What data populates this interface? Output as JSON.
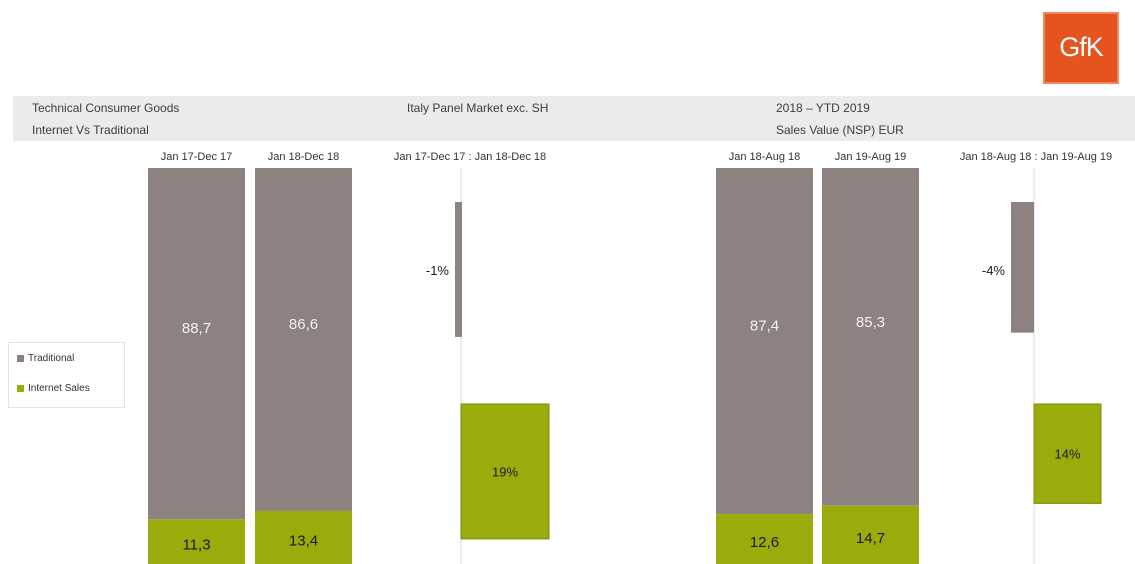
{
  "logo": {
    "text": "GfK"
  },
  "header": {
    "category": "Technical Consumer Goods",
    "subtitle": "Internet Vs Traditional",
    "market": "Italy Panel Market exc. SH",
    "period": "2018 – YTD 2019",
    "measure": "Sales Value (NSP) EUR"
  },
  "legend": {
    "items": [
      {
        "label": "Traditional",
        "color": "#8d8280"
      },
      {
        "label": "Internet Sales",
        "color": "#9aab0c"
      }
    ]
  },
  "colors": {
    "traditional": "#8d8280",
    "internet": "#9aab0c",
    "divider": "#d9d9d9"
  },
  "chart_data": [
    {
      "type": "bar",
      "stacked": true,
      "unit": "%",
      "categories": [
        "Jan 17-Dec 17",
        "Jan 18-Dec 18"
      ],
      "series": [
        {
          "name": "Internet Sales",
          "values": [
            11.3,
            13.4
          ],
          "labels": [
            "11,3",
            "13,4"
          ]
        },
        {
          "name": "Traditional",
          "values": [
            88.7,
            86.6
          ],
          "labels": [
            "88,7",
            "86,6"
          ]
        }
      ]
    },
    {
      "type": "bar",
      "title": "Jan 17-Dec 17 : Jan 18-Dec 18",
      "categories": [
        "Traditional",
        "Internet Sales"
      ],
      "values": [
        -1,
        19
      ],
      "labels": [
        "-1%",
        "19%"
      ]
    },
    {
      "type": "bar",
      "stacked": true,
      "unit": "%",
      "categories": [
        "Jan 18-Aug 18",
        "Jan 19-Aug 19"
      ],
      "series": [
        {
          "name": "Internet Sales",
          "values": [
            12.6,
            14.7
          ],
          "labels": [
            "12,6",
            "14,7"
          ]
        },
        {
          "name": "Traditional",
          "values": [
            87.4,
            85.3
          ],
          "labels": [
            "87,4",
            "85,3"
          ]
        }
      ]
    },
    {
      "type": "bar",
      "title": "Jan 18-Aug 18 : Jan 19-Aug 19",
      "categories": [
        "Traditional",
        "Internet Sales"
      ],
      "values": [
        -4,
        14
      ],
      "labels": [
        "-4%",
        "14%"
      ]
    }
  ]
}
